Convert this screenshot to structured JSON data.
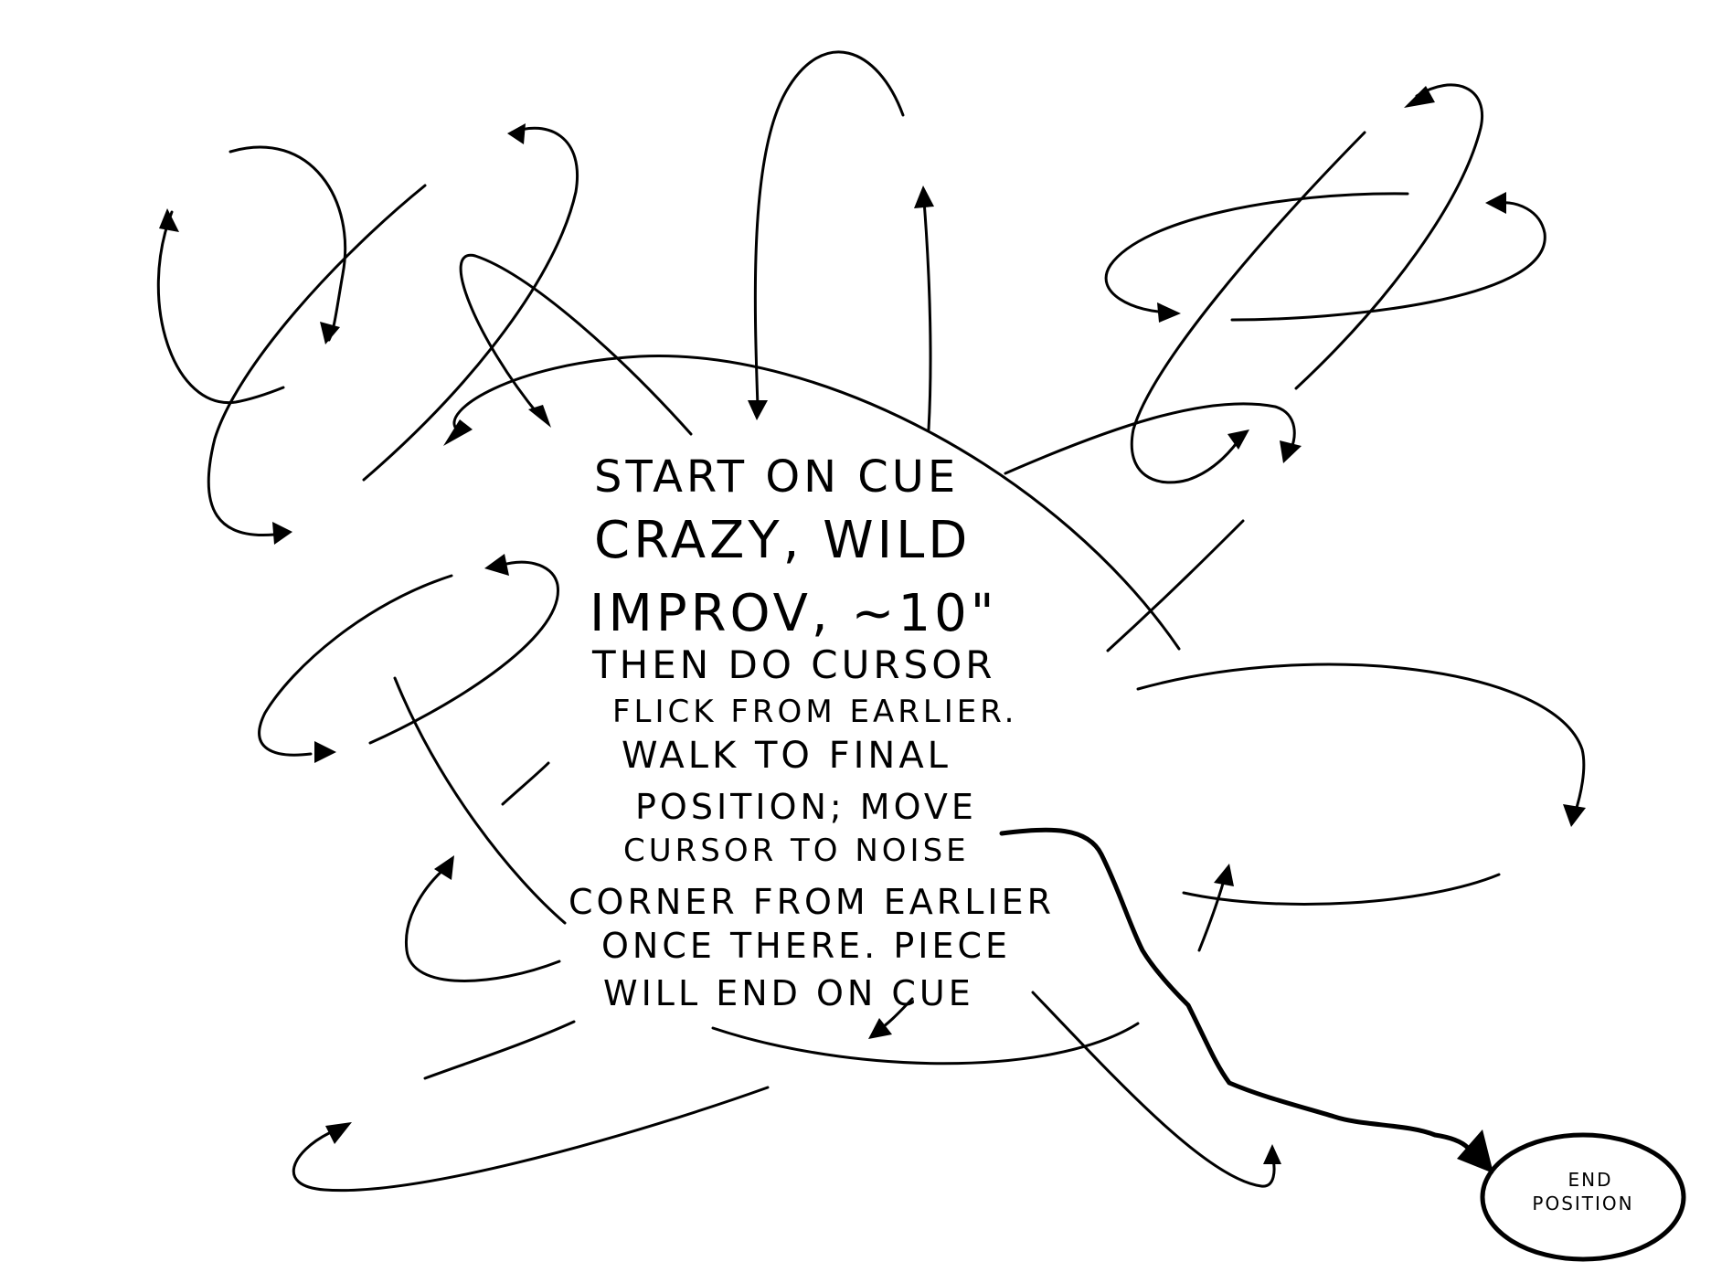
{
  "instructions": {
    "lines": [
      "START ON CUE",
      "CRAZY, WILD",
      "IMPROV, ~10\"",
      "THEN DO CURSOR",
      "FLICK FROM EARLIER.",
      "WALK TO FINAL",
      "POSITION; MOVE",
      "CURSOR TO NOISE",
      "CORNER FROM EARLIER",
      "ONCE THERE. PIECE",
      "WILL END ON CUE"
    ]
  },
  "end_marker": {
    "line1": "END",
    "line2": "POSITION"
  }
}
